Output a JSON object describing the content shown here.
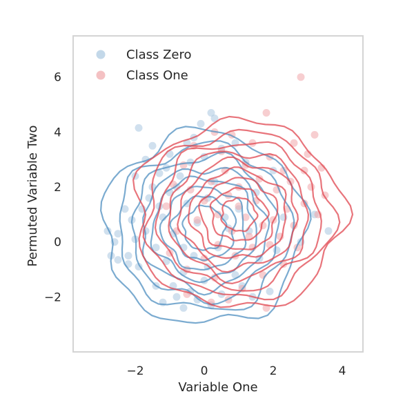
{
  "chart_data": {
    "type": "scatter",
    "title": "",
    "xlabel": "Variable One",
    "ylabel": "Permuted Variable Two",
    "xlim": [
      -3.8,
      4.6
    ],
    "ylim": [
      -4.0,
      7.5
    ],
    "xticks": [
      "−2",
      "0",
      "2",
      "4"
    ],
    "xtick_values": [
      -2,
      0,
      2,
      4
    ],
    "yticks": [
      "−2",
      "0",
      "2",
      "4",
      "6"
    ],
    "ytick_values": [
      -2,
      0,
      2,
      4,
      6
    ],
    "grid": false,
    "legend_position": "top-left",
    "overlay": "kde-contours",
    "series": [
      {
        "name": "Class Zero",
        "color": "#4f8fc0",
        "point_color": "#a9c7e0",
        "center": [
          0.0,
          0.5
        ],
        "contour_radii": [
          [
            2.9,
            3.5
          ],
          [
            2.5,
            3.0
          ],
          [
            2.1,
            2.6
          ],
          [
            1.8,
            2.2
          ],
          [
            1.5,
            1.85
          ],
          [
            1.2,
            1.5
          ],
          [
            0.9,
            1.15
          ],
          [
            0.6,
            0.8
          ]
        ],
        "points": [
          [
            -2.5,
            0.3
          ],
          [
            -2.1,
            0.8
          ],
          [
            -1.8,
            1.2
          ],
          [
            -2.2,
            -0.5
          ],
          [
            -1.5,
            2.0
          ],
          [
            -1.7,
            3.0
          ],
          [
            -1.9,
            4.15
          ],
          [
            -2.7,
            -0.5
          ],
          [
            -2.5,
            -0.65
          ],
          [
            -2.2,
            -0.8
          ],
          [
            -2.6,
            0.0
          ],
          [
            -2.8,
            0.4
          ],
          [
            -2.3,
            1.2
          ],
          [
            -1.4,
            -1.6
          ],
          [
            -1.2,
            -2.2
          ],
          [
            -0.8,
            -2.0
          ],
          [
            -0.6,
            -2.4
          ],
          [
            -0.2,
            -2.1
          ],
          [
            0.2,
            -2.3
          ],
          [
            0.5,
            -1.9
          ],
          [
            1.4,
            -2.0
          ],
          [
            1.9,
            -1.8
          ],
          [
            1.1,
            -1.6
          ],
          [
            3.6,
            0.4
          ],
          [
            3.2,
            1.0
          ],
          [
            2.8,
            0.0
          ],
          [
            0.2,
            4.7
          ],
          [
            0.3,
            4.5
          ],
          [
            -0.1,
            4.3
          ],
          [
            -0.5,
            3.6
          ],
          [
            -1.0,
            3.2
          ],
          [
            -1.3,
            2.5
          ],
          [
            -1.6,
            1.6
          ],
          [
            -1.0,
            1.8
          ],
          [
            -0.7,
            2.4
          ],
          [
            -0.4,
            2.9
          ],
          [
            0.0,
            3.1
          ],
          [
            0.5,
            3.4
          ],
          [
            0.9,
            3.6
          ],
          [
            1.2,
            2.9
          ],
          [
            -1.2,
            0.9
          ],
          [
            -0.9,
            0.3
          ],
          [
            -1.4,
            -0.2
          ],
          [
            -1.1,
            -0.7
          ],
          [
            -0.6,
            -1.1
          ],
          [
            -0.3,
            -0.5
          ],
          [
            0.1,
            -0.9
          ],
          [
            0.4,
            -0.2
          ],
          [
            0.7,
            0.5
          ],
          [
            -0.2,
            0.7
          ],
          [
            -0.5,
            1.4
          ],
          [
            0.1,
            1.6
          ],
          [
            0.3,
            2.2
          ],
          [
            -0.8,
            2.0
          ],
          [
            1.0,
            1.2
          ],
          [
            1.3,
            0.4
          ],
          [
            1.6,
            -0.6
          ],
          [
            0.9,
            -1.2
          ],
          [
            -1.7,
            0.4
          ],
          [
            -1.9,
            -0.9
          ],
          [
            -0.9,
            -1.6
          ],
          [
            0.0,
            -1.4
          ],
          [
            2.1,
            -0.3
          ],
          [
            2.3,
            0.9
          ],
          [
            -2.0,
            2.4
          ],
          [
            -1.5,
            3.5
          ],
          [
            -0.3,
            3.8
          ],
          [
            -1.1,
            2.7
          ],
          [
            -0.6,
            -0.2
          ],
          [
            0.6,
            0.9
          ],
          [
            -1.3,
            1.3
          ],
          [
            1.5,
            1.8
          ],
          [
            2.0,
            2.6
          ],
          [
            -0.4,
            -1.8
          ],
          [
            -2.0,
            0.1
          ]
        ]
      },
      {
        "name": "Class One",
        "color": "#e0454f",
        "point_color": "#f0a6aa",
        "center": [
          1.0,
          1.0
        ],
        "contour_radii": [
          [
            3.0,
            3.4
          ],
          [
            2.7,
            3.0
          ],
          [
            2.35,
            2.65
          ],
          [
            2.0,
            2.3
          ],
          [
            1.7,
            1.95
          ],
          [
            1.4,
            1.6
          ],
          [
            1.1,
            1.3
          ],
          [
            0.8,
            0.95
          ],
          [
            0.5,
            0.6
          ]
        ],
        "points": [
          [
            2.8,
            6.0
          ],
          [
            1.8,
            4.7
          ],
          [
            3.2,
            3.9
          ],
          [
            2.6,
            3.6
          ],
          [
            3.0,
            3.2
          ],
          [
            3.4,
            2.7
          ],
          [
            3.1,
            2.0
          ],
          [
            3.3,
            1.0
          ],
          [
            2.9,
            1.4
          ],
          [
            2.6,
            0.6
          ],
          [
            1.8,
            -2.4
          ],
          [
            0.7,
            -2.1
          ],
          [
            0.2,
            -2.2
          ],
          [
            -0.5,
            -1.9
          ],
          [
            1.1,
            -1.7
          ],
          [
            1.7,
            -1.2
          ],
          [
            2.3,
            -0.8
          ],
          [
            2.7,
            -0.2
          ],
          [
            2.2,
            0.2
          ],
          [
            2.4,
            1.2
          ],
          [
            2.1,
            1.9
          ],
          [
            2.3,
            2.6
          ],
          [
            1.9,
            3.1
          ],
          [
            1.4,
            3.6
          ],
          [
            0.8,
            3.9
          ],
          [
            0.3,
            4.0
          ],
          [
            -0.3,
            3.5
          ],
          [
            -0.6,
            2.8
          ],
          [
            -0.9,
            2.1
          ],
          [
            -1.1,
            1.3
          ],
          [
            -0.8,
            0.4
          ],
          [
            -1.0,
            -0.4
          ],
          [
            -0.5,
            -1.0
          ],
          [
            0.0,
            -0.6
          ],
          [
            0.4,
            -0.1
          ],
          [
            0.8,
            0.4
          ],
          [
            1.2,
            0.9
          ],
          [
            1.5,
            1.5
          ],
          [
            1.0,
            2.0
          ],
          [
            0.6,
            2.6
          ],
          [
            0.2,
            2.2
          ],
          [
            0.0,
            1.5
          ],
          [
            0.4,
            1.0
          ],
          [
            0.9,
            -0.5
          ],
          [
            1.4,
            -0.2
          ],
          [
            1.7,
            0.6
          ],
          [
            1.6,
            2.3
          ],
          [
            1.2,
            2.8
          ],
          [
            0.5,
            3.3
          ],
          [
            -0.2,
            0.8
          ],
          [
            1.9,
            -0.1
          ],
          [
            0.3,
            -1.3
          ],
          [
            2.5,
            2.2
          ],
          [
            3.5,
            1.7
          ],
          [
            2.9,
            2.6
          ],
          [
            1.0,
            1.3
          ],
          [
            0.7,
            1.7
          ],
          [
            1.3,
            0.2
          ],
          [
            -0.4,
            1.9
          ],
          [
            2.0,
            0.8
          ]
        ]
      }
    ]
  }
}
